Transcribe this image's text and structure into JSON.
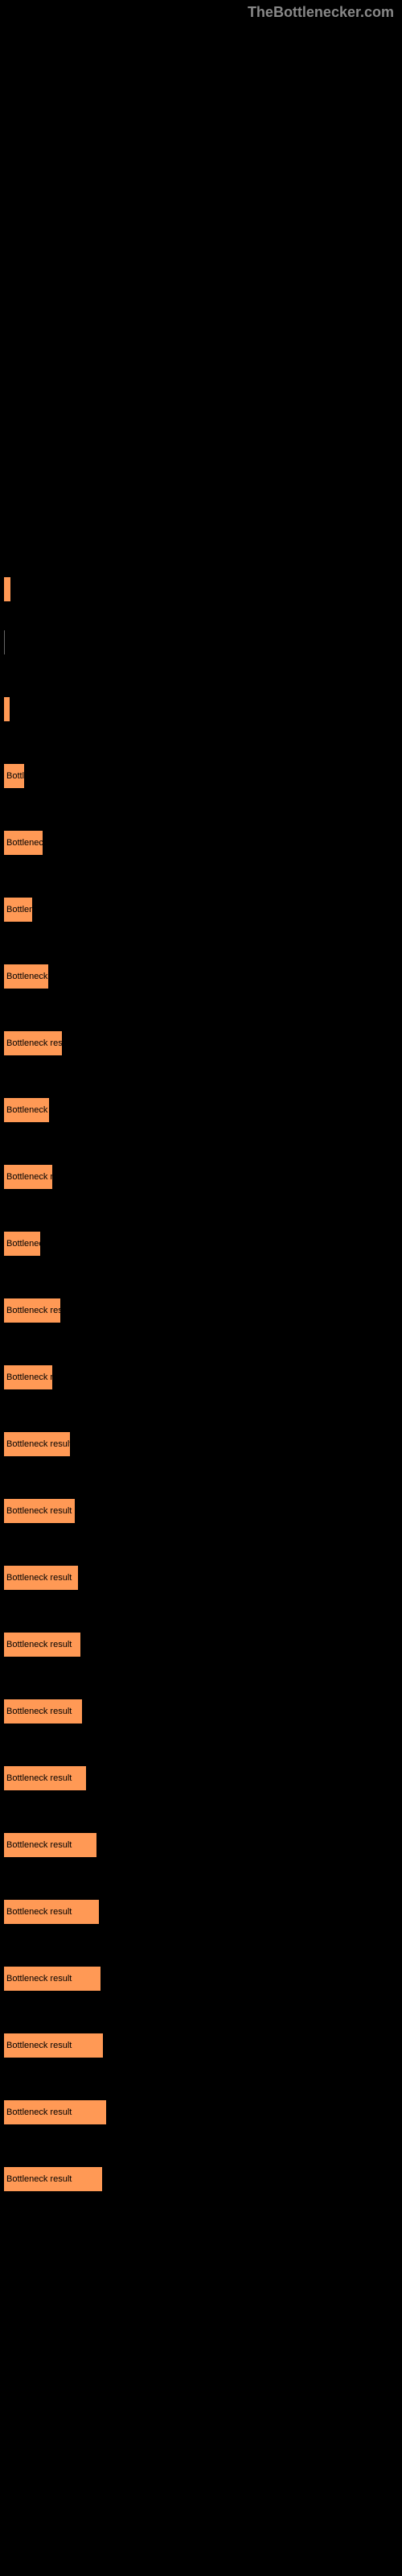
{
  "watermark": "TheBottlenecker.com",
  "chart": {
    "type": "bar",
    "bar_color": "#ff9955",
    "background_color": "#000000",
    "text_color": "#000000",
    "bars": [
      {
        "label": "",
        "text": "",
        "width": 8
      },
      {
        "label": "",
        "text": "",
        "width": 3,
        "is_line": true
      },
      {
        "label": "",
        "text": "",
        "width": 7
      },
      {
        "label": "",
        "text": "Bottle",
        "width": 25
      },
      {
        "label": "",
        "text": "Bottleneck",
        "width": 48
      },
      {
        "label": "",
        "text": "Bottlen",
        "width": 35
      },
      {
        "label": "",
        "text": "Bottleneck r",
        "width": 55
      },
      {
        "label": "",
        "text": "Bottleneck resul",
        "width": 72
      },
      {
        "label": "",
        "text": "Bottleneck r",
        "width": 56
      },
      {
        "label": "",
        "text": "Bottleneck re",
        "width": 60
      },
      {
        "label": "",
        "text": "Bottlenec",
        "width": 45
      },
      {
        "label": "",
        "text": "Bottleneck resu",
        "width": 70
      },
      {
        "label": "",
        "text": "Bottleneck re",
        "width": 60
      },
      {
        "label": "",
        "text": "Bottleneck result",
        "width": 82
      },
      {
        "label": "",
        "text": "Bottleneck result",
        "width": 88
      },
      {
        "label": "",
        "text": "Bottleneck result",
        "width": 92
      },
      {
        "label": "",
        "text": "Bottleneck result",
        "width": 95
      },
      {
        "label": "",
        "text": "Bottleneck result",
        "width": 97
      },
      {
        "label": "",
        "text": "Bottleneck result",
        "width": 102
      },
      {
        "label": "",
        "text": "Bottleneck result",
        "width": 115
      },
      {
        "label": "",
        "text": "Bottleneck result",
        "width": 118
      },
      {
        "label": "",
        "text": "Bottleneck result",
        "width": 120
      },
      {
        "label": "",
        "text": "Bottleneck result",
        "width": 123
      },
      {
        "label": "",
        "text": "Bottleneck result",
        "width": 127
      },
      {
        "label": "",
        "text": "Bottleneck result",
        "width": 122
      }
    ]
  }
}
